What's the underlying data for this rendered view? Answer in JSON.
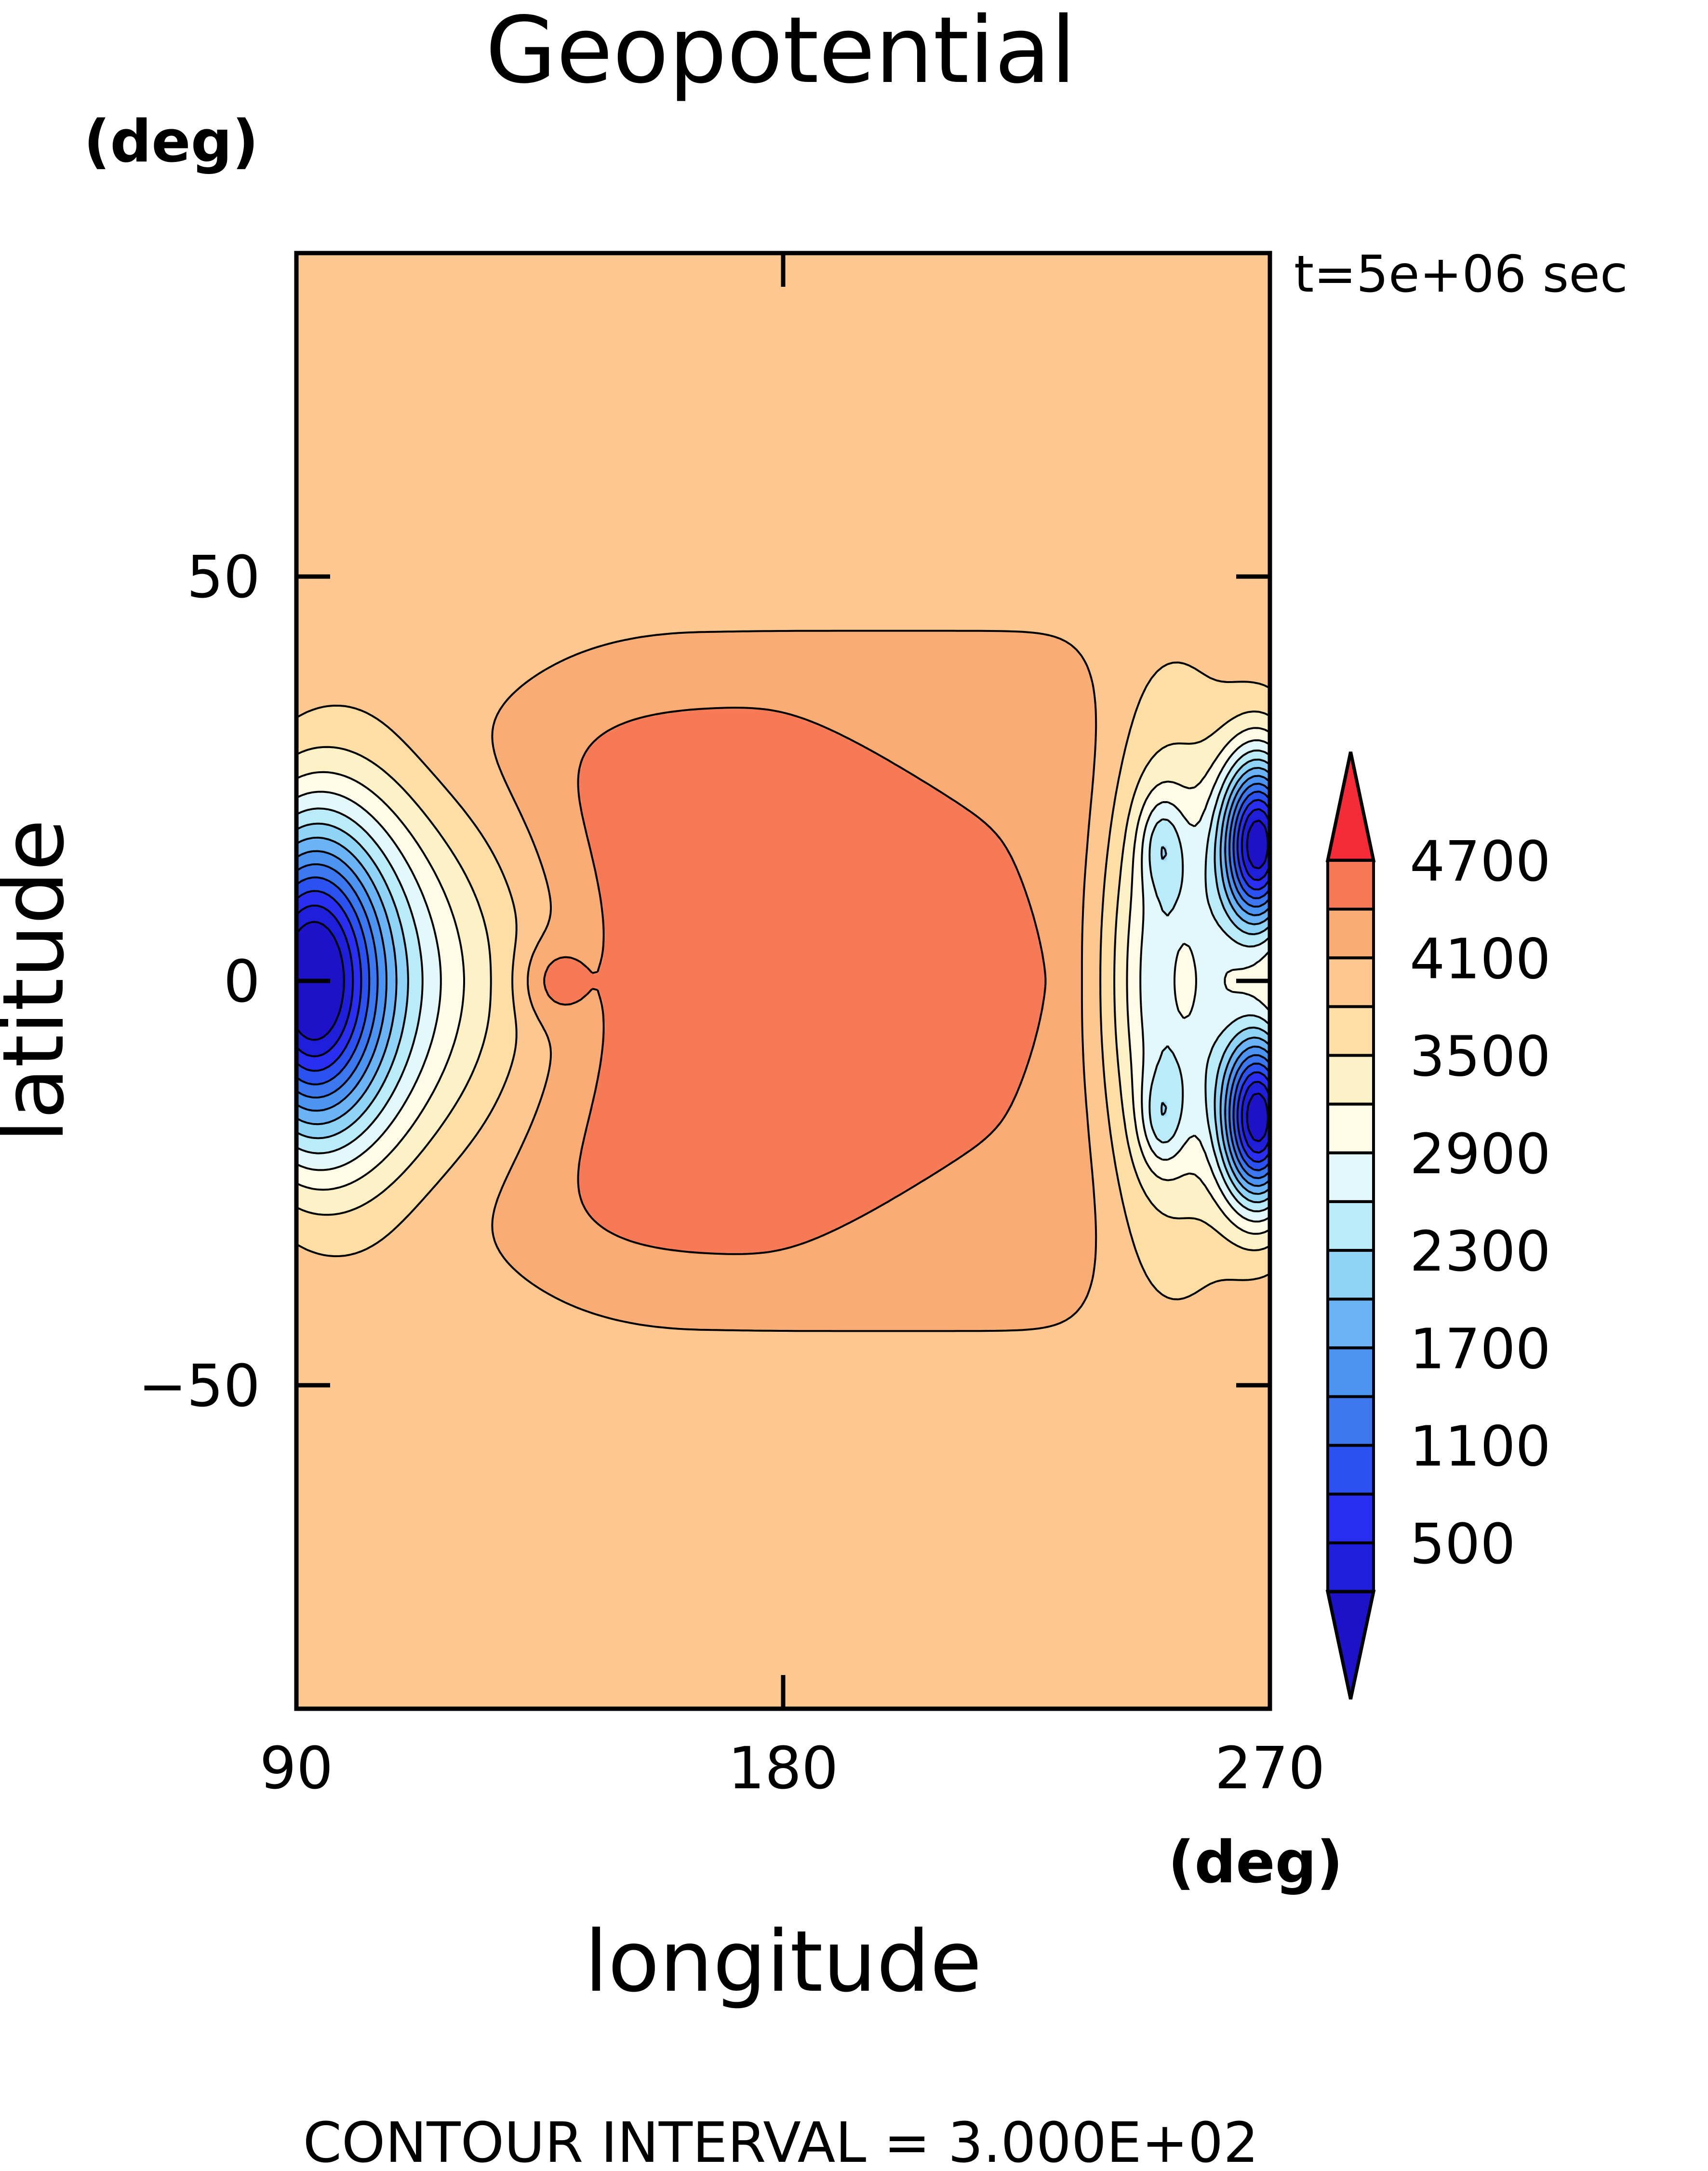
{
  "chart_data": {
    "type": "heatmap",
    "title": "Geopotential",
    "time_label": "t=5e+06 sec",
    "xlabel": "longitude",
    "xunit": "(deg)",
    "ylabel": "latitude",
    "yunit": "(deg)",
    "footer": "CONTOUR INTERVAL = 3.000E+02",
    "xlim": [
      90,
      270
    ],
    "ylim": [
      -90,
      90
    ],
    "xticks": [
      90,
      180,
      270
    ],
    "yticks": [
      -50,
      0,
      50
    ],
    "contour_interval": 300,
    "colorbar": {
      "levels": [
        200,
        500,
        800,
        1100,
        1400,
        1700,
        2000,
        2300,
        2600,
        2900,
        3200,
        3500,
        3800,
        4100,
        4400,
        4700
      ],
      "labels": [
        500,
        1100,
        1700,
        2300,
        2900,
        3500,
        4100,
        4700
      ],
      "colors": [
        "#1d12c8",
        "#1f1fd9",
        "#2a2ef0",
        "#2b52f0",
        "#3b78ef",
        "#4c94f2",
        "#6ab4f5",
        "#8fd3f7",
        "#b9ecf8",
        "#e3f8fb",
        "#fffbe6",
        "#fdf1c7",
        "#fddfa6",
        "#fcc890",
        "#f9ad74",
        "#f77a57",
        "#f52b37"
      ],
      "extend": "both"
    },
    "field": {
      "background": 4000,
      "features": [
        {
          "kind": "high_band",
          "lon_start": 90,
          "lon_end": 240,
          "lat_extent": 41,
          "value": 4400
        },
        {
          "kind": "high_core",
          "lon_center": 190,
          "lat_extent": 34,
          "value": 4700
        },
        {
          "kind": "low",
          "lon": 92,
          "lat": 0,
          "value": 300
        },
        {
          "kind": "low",
          "lon": 268,
          "lat": 17,
          "value": 200
        },
        {
          "kind": "low",
          "lon": 268,
          "lat": -17,
          "value": 200
        },
        {
          "kind": "local_min",
          "lon": 250,
          "lat": 17,
          "value": 2000
        },
        {
          "kind": "local_min",
          "lon": 250,
          "lat": -17,
          "value": 2000
        },
        {
          "kind": "local_max",
          "lon": 137,
          "lat": 0,
          "value": 3100
        },
        {
          "kind": "local_max",
          "lon": 254,
          "lat": 0,
          "value": 4000
        }
      ]
    }
  }
}
